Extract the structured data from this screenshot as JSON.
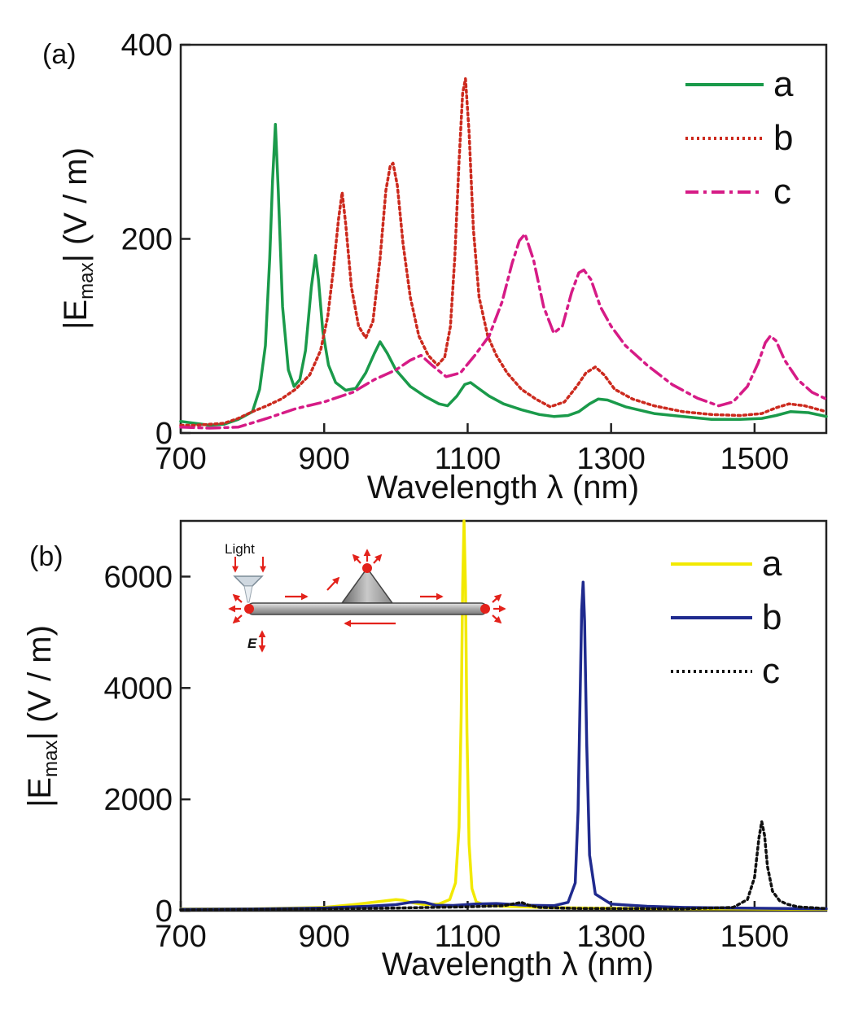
{
  "chart_data": [
    {
      "type": "line",
      "panel_label": "(a)",
      "xlabel": "Wavelength λ (nm)",
      "ylabel_prefix": "|E",
      "ylabel_sub": "max",
      "ylabel_suffix": "| (V / m)",
      "xlim": [
        700,
        1600
      ],
      "ylim": [
        0,
        400
      ],
      "xticks": [
        700,
        900,
        1100,
        1300,
        1500
      ],
      "yticks": [
        0,
        200,
        400
      ],
      "legend_position": "top-right",
      "series": [
        {
          "name": "a",
          "color": "#1a9a4a",
          "style": "solid",
          "x": [
            700,
            720,
            740,
            760,
            780,
            800,
            810,
            818,
            824,
            828,
            832,
            836,
            842,
            850,
            858,
            866,
            874,
            882,
            888,
            892,
            898,
            906,
            916,
            930,
            944,
            958,
            970,
            978,
            988,
            1000,
            1020,
            1040,
            1060,
            1072,
            1085,
            1096,
            1104,
            1115,
            1130,
            1150,
            1175,
            1200,
            1220,
            1240,
            1255,
            1270,
            1282,
            1295,
            1320,
            1360,
            1400,
            1440,
            1480,
            1510,
            1530,
            1550,
            1575,
            1600
          ],
          "values": [
            12,
            10,
            8,
            9,
            14,
            22,
            45,
            90,
            180,
            260,
            318,
            250,
            130,
            65,
            48,
            55,
            85,
            150,
            183,
            158,
            105,
            70,
            52,
            44,
            46,
            62,
            82,
            94,
            82,
            65,
            48,
            38,
            30,
            28,
            38,
            50,
            52,
            46,
            38,
            30,
            24,
            19,
            17,
            18,
            22,
            30,
            35,
            34,
            27,
            20,
            17,
            14,
            14,
            15,
            18,
            22,
            21,
            17
          ]
        },
        {
          "name": "b",
          "color": "#cc2a1e",
          "style": "dotted",
          "x": [
            700,
            720,
            740,
            760,
            780,
            800,
            820,
            840,
            860,
            880,
            895,
            905,
            913,
            920,
            925,
            930,
            938,
            948,
            958,
            968,
            978,
            986,
            992,
            996,
            1002,
            1010,
            1020,
            1032,
            1045,
            1058,
            1068,
            1076,
            1082,
            1088,
            1093,
            1097,
            1102,
            1108,
            1116,
            1128,
            1140,
            1155,
            1175,
            1195,
            1215,
            1235,
            1252,
            1265,
            1278,
            1290,
            1305,
            1330,
            1360,
            1400,
            1440,
            1480,
            1510,
            1530,
            1548,
            1570,
            1600
          ],
          "values": [
            8,
            8,
            9,
            10,
            15,
            22,
            28,
            35,
            45,
            60,
            85,
            120,
            170,
            220,
            248,
            215,
            150,
            110,
            98,
            115,
            180,
            250,
            275,
            278,
            255,
            195,
            140,
            100,
            80,
            70,
            78,
            110,
            180,
            280,
            350,
            365,
            310,
            210,
            140,
            100,
            80,
            62,
            45,
            35,
            27,
            32,
            48,
            62,
            68,
            60,
            45,
            35,
            28,
            22,
            19,
            18,
            20,
            26,
            30,
            28,
            22
          ]
        },
        {
          "name": "c",
          "color": "#d61b86",
          "style": "dash-dot",
          "x": [
            700,
            740,
            780,
            820,
            860,
            900,
            940,
            970,
            1000,
            1020,
            1035,
            1050,
            1070,
            1090,
            1110,
            1130,
            1148,
            1162,
            1172,
            1180,
            1192,
            1206,
            1220,
            1232,
            1245,
            1255,
            1262,
            1272,
            1285,
            1300,
            1320,
            1350,
            1385,
            1420,
            1450,
            1470,
            1490,
            1505,
            1515,
            1522,
            1530,
            1542,
            1560,
            1580,
            1600
          ],
          "values": [
            6,
            5,
            6,
            15,
            25,
            32,
            42,
            55,
            65,
            75,
            80,
            70,
            58,
            62,
            80,
            100,
            135,
            175,
            198,
            205,
            178,
            130,
            103,
            110,
            145,
            165,
            168,
            158,
            130,
            110,
            90,
            70,
            50,
            36,
            28,
            32,
            48,
            72,
            93,
            100,
            95,
            75,
            55,
            42,
            35
          ]
        }
      ]
    },
    {
      "type": "line",
      "panel_label": "(b)",
      "xlabel": "Wavelength λ (nm)",
      "ylabel_prefix": "|E",
      "ylabel_sub": "max",
      "ylabel_suffix": "| (V / m)",
      "xlim": [
        700,
        1600
      ],
      "ylim": [
        0,
        7000
      ],
      "xticks": [
        700,
        900,
        1100,
        1300,
        1500
      ],
      "yticks": [
        0,
        2000,
        4000,
        6000
      ],
      "legend_position": "top-right",
      "series": [
        {
          "name": "a",
          "color": "#f2e900",
          "style": "solid",
          "x": [
            700,
            800,
            900,
            940,
            980,
            1000,
            1010,
            1020,
            1040,
            1060,
            1075,
            1083,
            1088,
            1091,
            1093,
            1095,
            1097,
            1099,
            1102,
            1106,
            1112,
            1125,
            1150,
            1200,
            1260,
            1300,
            1400,
            1500,
            1600
          ],
          "values": [
            30,
            35,
            60,
            110,
            170,
            200,
            190,
            150,
            110,
            120,
            200,
            500,
            1500,
            3500,
            5800,
            7000,
            5800,
            3200,
            1200,
            400,
            160,
            100,
            80,
            60,
            50,
            45,
            35,
            30,
            25
          ]
        },
        {
          "name": "b",
          "color": "#1f2a8e",
          "style": "solid",
          "x": [
            700,
            800,
            900,
            960,
            1000,
            1020,
            1030,
            1040,
            1055,
            1080,
            1110,
            1140,
            1180,
            1220,
            1240,
            1250,
            1254,
            1257,
            1259,
            1261,
            1263,
            1266,
            1270,
            1278,
            1300,
            1350,
            1400,
            1500,
            1600
          ],
          "values": [
            25,
            30,
            50,
            80,
            110,
            150,
            160,
            150,
            100,
            95,
            120,
            130,
            100,
            90,
            150,
            500,
            1800,
            4000,
            5400,
            5900,
            5200,
            3000,
            1000,
            300,
            120,
            80,
            60,
            45,
            35
          ]
        },
        {
          "name": "c",
          "color": "#111111",
          "style": "dotted",
          "x": [
            700,
            900,
            1000,
            1100,
            1150,
            1175,
            1185,
            1200,
            1260,
            1300,
            1400,
            1470,
            1490,
            1500,
            1506,
            1510,
            1514,
            1518,
            1525,
            1535,
            1545,
            1560,
            1600
          ],
          "values": [
            15,
            30,
            50,
            70,
            90,
            150,
            100,
            60,
            40,
            40,
            35,
            60,
            200,
            600,
            1300,
            1600,
            1350,
            800,
            350,
            180,
            120,
            70,
            40
          ]
        }
      ]
    }
  ],
  "inset": {
    "light_label": "Light",
    "field_label": "E"
  }
}
